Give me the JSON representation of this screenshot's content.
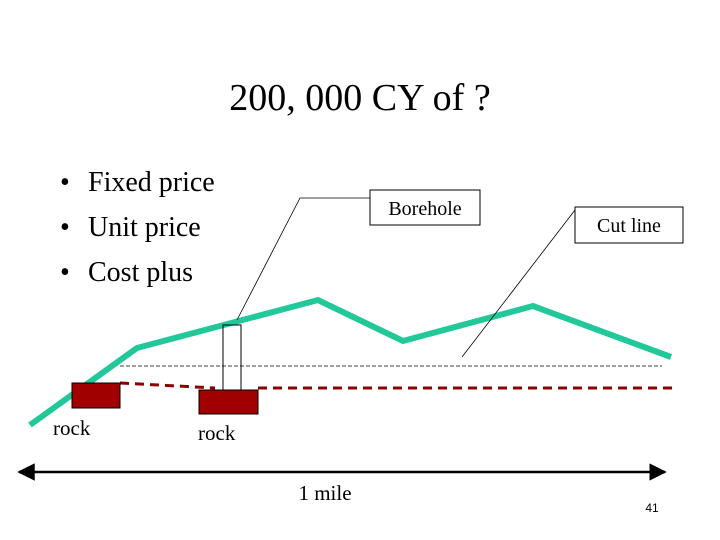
{
  "title": "200, 000 CY of ?",
  "bullets": [
    "Fixed price",
    "Unit price",
    "Cost plus"
  ],
  "callouts": {
    "borehole": "Borehole",
    "cut_line": "Cut line"
  },
  "rocks": [
    "rock",
    "rock"
  ],
  "scale_label": "1 mile",
  "page_number": "41"
}
